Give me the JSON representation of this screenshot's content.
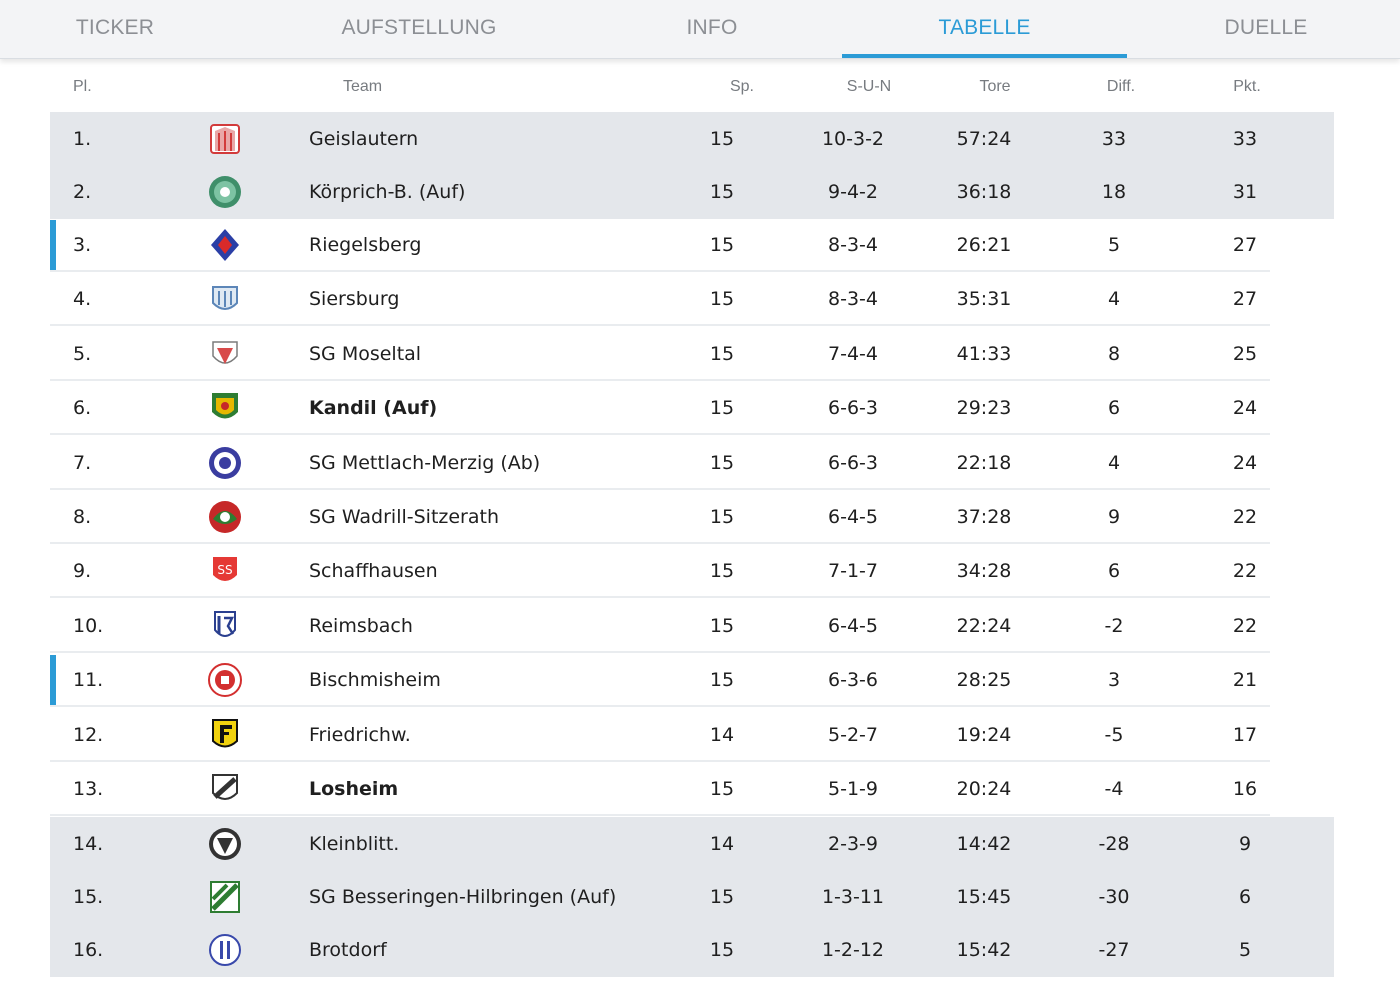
{
  "tabs": [
    {
      "label": "TICKER",
      "active": false
    },
    {
      "label": "AUFSTELLUNG",
      "active": false
    },
    {
      "label": "INFO",
      "active": false
    },
    {
      "label": "TABELLE",
      "active": true
    },
    {
      "label": "DUELLE",
      "active": false
    }
  ],
  "colors": {
    "accent": "#2b9bd6",
    "shade": "#e4e7eb",
    "tab_background": "#f3f4f6"
  },
  "table": {
    "headers": {
      "rank": "Pl.",
      "team": "Team",
      "sp": "Sp.",
      "sun": "S-U-N",
      "tore": "Tore",
      "diff": "Diff.",
      "pkt": "Pkt."
    },
    "rows": [
      {
        "rank": "1.",
        "crest": "geislautern-crest-icon",
        "team": "Geislautern",
        "sp": "15",
        "sun": "10-3-2",
        "tore": "57:24",
        "diff": "33",
        "pkt": "33",
        "shaded": true,
        "marker": false,
        "bold": false
      },
      {
        "rank": "2.",
        "crest": "koerprich-crest-icon",
        "team": "Körprich-B. (Auf)",
        "sp": "15",
        "sun": "9-4-2",
        "tore": "36:18",
        "diff": "18",
        "pkt": "31",
        "shaded": true,
        "marker": false,
        "bold": false
      },
      {
        "rank": "3.",
        "crest": "riegelsberg-crest-icon",
        "team": "Riegelsberg",
        "sp": "15",
        "sun": "8-3-4",
        "tore": "26:21",
        "diff": "5",
        "pkt": "27",
        "shaded": false,
        "marker": true,
        "bold": false
      },
      {
        "rank": "4.",
        "crest": "siersburg-crest-icon",
        "team": "Siersburg",
        "sp": "15",
        "sun": "8-3-4",
        "tore": "35:31",
        "diff": "4",
        "pkt": "27",
        "shaded": false,
        "marker": false,
        "bold": false
      },
      {
        "rank": "5.",
        "crest": "sg-moseltal-crest-icon",
        "team": "SG Moseltal",
        "sp": "15",
        "sun": "7-4-4",
        "tore": "41:33",
        "diff": "8",
        "pkt": "25",
        "shaded": false,
        "marker": false,
        "bold": false
      },
      {
        "rank": "6.",
        "crest": "kandil-crest-icon",
        "team": "Kandil (Auf)",
        "sp": "15",
        "sun": "6-6-3",
        "tore": "29:23",
        "diff": "6",
        "pkt": "24",
        "shaded": false,
        "marker": false,
        "bold": true
      },
      {
        "rank": "7.",
        "crest": "mettlach-merzig-crest-icon",
        "team": "SG Mettlach-Merzig (Ab)",
        "sp": "15",
        "sun": "6-6-3",
        "tore": "22:18",
        "diff": "4",
        "pkt": "24",
        "shaded": false,
        "marker": false,
        "bold": false
      },
      {
        "rank": "8.",
        "crest": "wadrill-sitzerath-crest-icon",
        "team": "SG Wadrill-Sitzerath",
        "sp": "15",
        "sun": "6-4-5",
        "tore": "37:28",
        "diff": "9",
        "pkt": "22",
        "shaded": false,
        "marker": false,
        "bold": false
      },
      {
        "rank": "9.",
        "crest": "schaffhausen-crest-icon",
        "team": "Schaffhausen",
        "sp": "15",
        "sun": "7-1-7",
        "tore": "34:28",
        "diff": "6",
        "pkt": "22",
        "shaded": false,
        "marker": false,
        "bold": false
      },
      {
        "rank": "10.",
        "crest": "reimsbach-crest-icon",
        "team": "Reimsbach",
        "sp": "15",
        "sun": "6-4-5",
        "tore": "22:24",
        "diff": "-2",
        "pkt": "22",
        "shaded": false,
        "marker": false,
        "bold": false
      },
      {
        "rank": "11.",
        "crest": "bischmisheim-crest-icon",
        "team": "Bischmisheim",
        "sp": "15",
        "sun": "6-3-6",
        "tore": "28:25",
        "diff": "3",
        "pkt": "21",
        "shaded": false,
        "marker": true,
        "bold": false
      },
      {
        "rank": "12.",
        "crest": "friedrichsweiler-crest-icon",
        "team": "Friedrichw.",
        "sp": "14",
        "sun": "5-2-7",
        "tore": "19:24",
        "diff": "-5",
        "pkt": "17",
        "shaded": false,
        "marker": false,
        "bold": false
      },
      {
        "rank": "13.",
        "crest": "losheim-crest-icon",
        "team": "Losheim",
        "sp": "15",
        "sun": "5-1-9",
        "tore": "20:24",
        "diff": "-4",
        "pkt": "16",
        "shaded": false,
        "marker": false,
        "bold": true
      },
      {
        "rank": "14.",
        "crest": "kleinblittersdorf-crest-icon",
        "team": "Kleinblitt.",
        "sp": "14",
        "sun": "2-3-9",
        "tore": "14:42",
        "diff": "-28",
        "pkt": "9",
        "shaded": true,
        "marker": false,
        "bold": false
      },
      {
        "rank": "15.",
        "crest": "besseringen-hilbringen-crest-icon",
        "team": "SG Besseringen-Hilbringen (Auf)",
        "sp": "15",
        "sun": "1-3-11",
        "tore": "15:45",
        "diff": "-30",
        "pkt": "6",
        "shaded": true,
        "marker": false,
        "bold": false
      },
      {
        "rank": "16.",
        "crest": "brotdorf-crest-icon",
        "team": "Brotdorf",
        "sp": "15",
        "sun": "1-2-12",
        "tore": "15:42",
        "diff": "-27",
        "pkt": "5",
        "shaded": true,
        "marker": false,
        "bold": false
      }
    ]
  }
}
